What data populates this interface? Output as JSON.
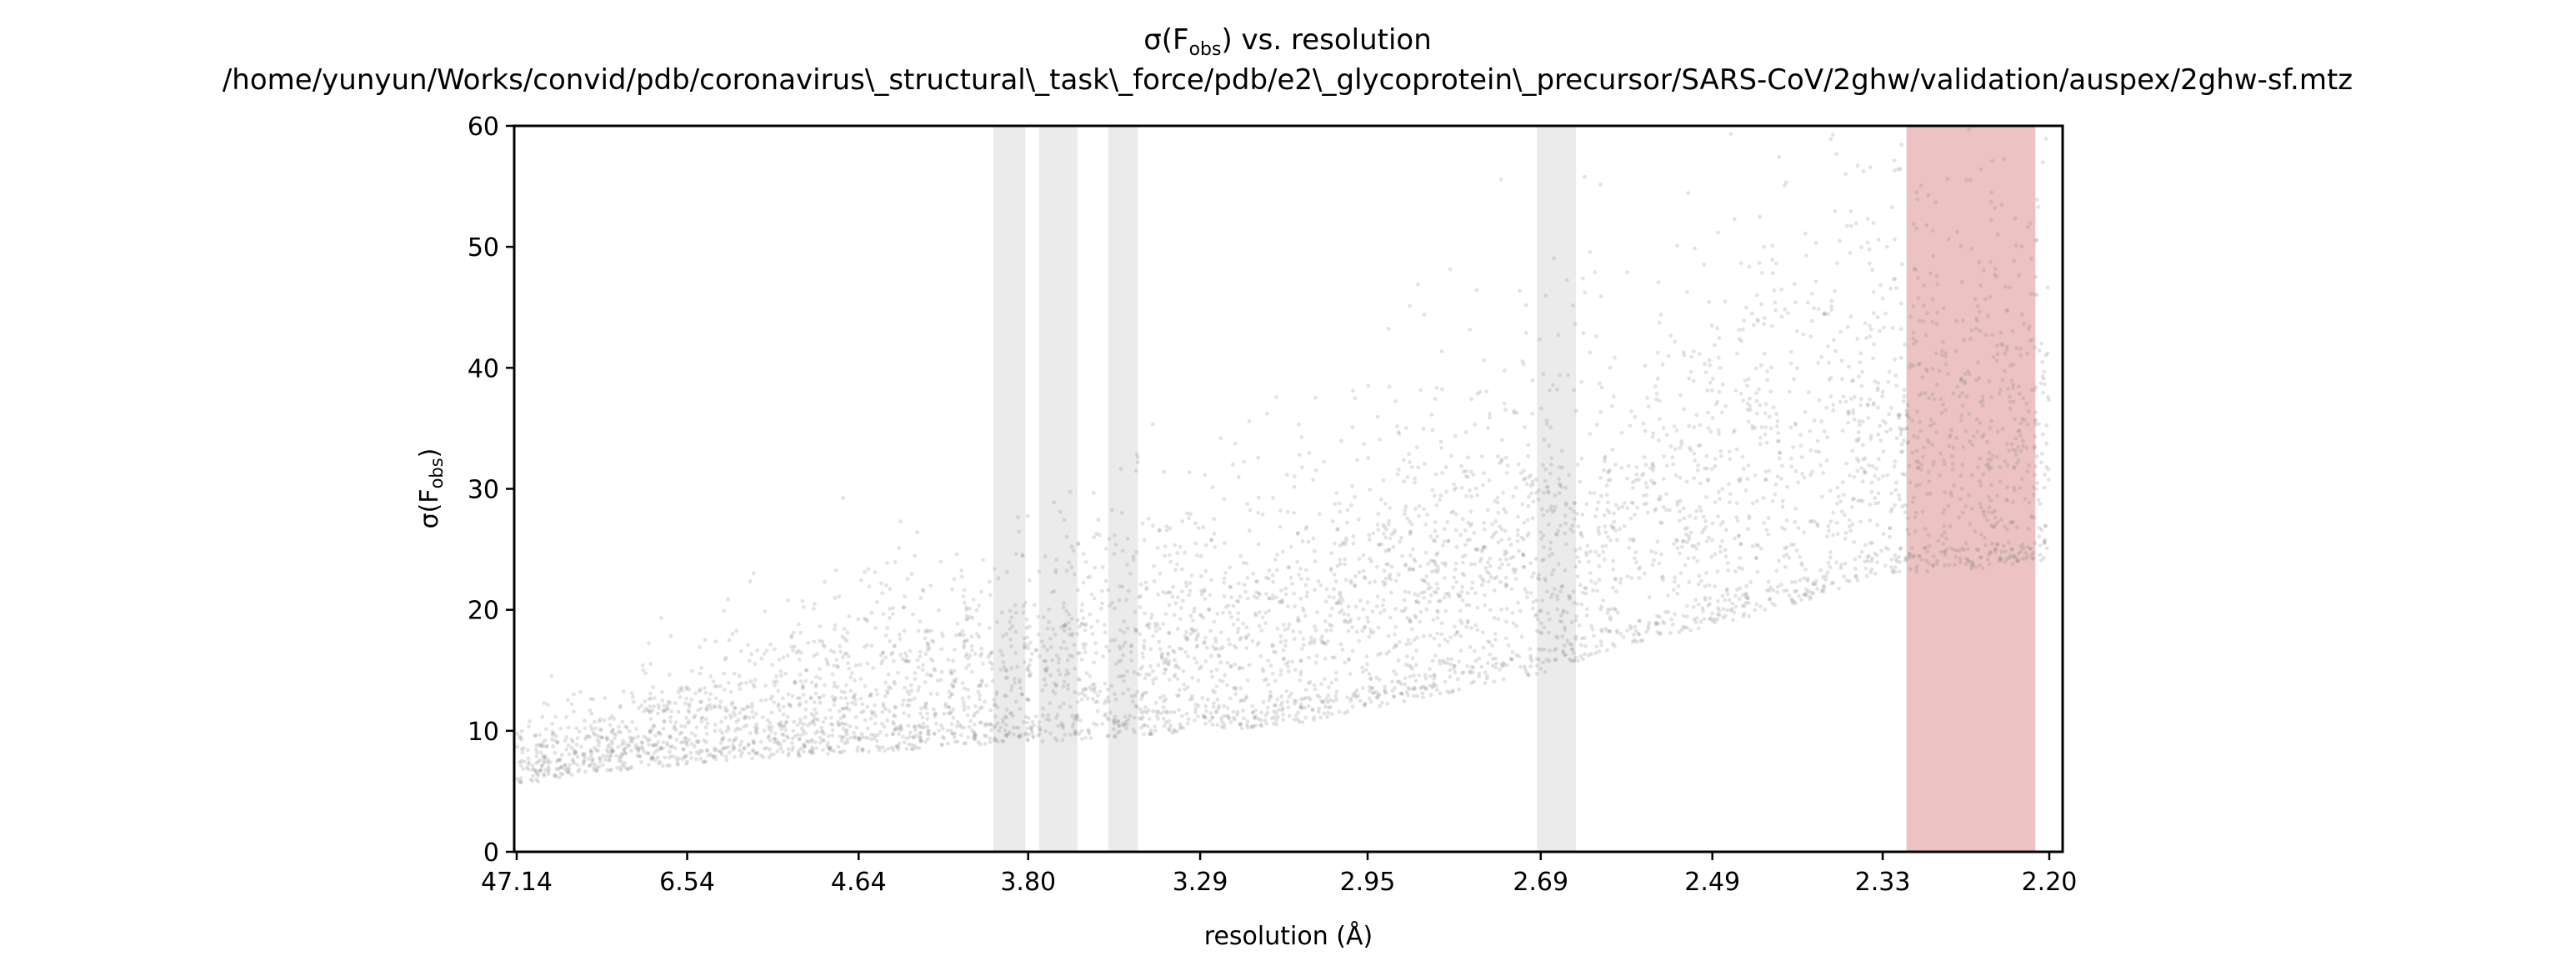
{
  "chart_data": {
    "type": "scatter",
    "title": "σ(F_obs) vs. resolution",
    "title_sub": "obs",
    "subtitle": "/home/yunyun/Works/convid/pdb/coronavirus\\_structural\\_task\\_force/pdb/e2\\_glycoprotein\\_precursor/SARS-CoV/2ghw/validation/auspex/2ghw-sf.mtz",
    "xlabel": "resolution (Å)",
    "ylabel": "σ(F_obs)",
    "x_scale": "reciprocal-squared (1/d²)",
    "x_ticks": [
      "47.14",
      "6.54",
      "4.64",
      "3.80",
      "3.29",
      "2.95",
      "2.69",
      "2.49",
      "2.33",
      "2.20"
    ],
    "x_tick_resolution": [
      47.14,
      6.54,
      4.64,
      3.8,
      3.29,
      2.95,
      2.69,
      2.49,
      2.33,
      2.2
    ],
    "ylim": [
      0,
      60
    ],
    "y_ticks": [
      0,
      10,
      20,
      30,
      40,
      50,
      60
    ],
    "grid": false,
    "legend": "none",
    "points_color": "#7f7f7f",
    "ice_ring_color": "#d3d3d3",
    "highlight_color": "#d98585",
    "series": [
      {
        "type": "density-trend",
        "x": [
          47.14,
          8.0,
          6.54,
          5.5,
          4.64,
          4.2,
          3.8,
          3.5,
          3.29,
          3.1,
          2.95,
          2.8,
          2.69,
          2.58,
          2.49,
          2.4,
          2.33,
          2.26,
          2.2
        ],
        "y_center": [
          7,
          9,
          10,
          11,
          12,
          13,
          14,
          15,
          16,
          17,
          19,
          21,
          23,
          26,
          28,
          30,
          33,
          33,
          34
        ],
        "y_spread": [
          3,
          4,
          5,
          6,
          7,
          8,
          9,
          10,
          11,
          12,
          13,
          14,
          15,
          16,
          17,
          17,
          18,
          18,
          18
        ]
      }
    ],
    "shaded_bands": [
      {
        "kind": "ice-ring",
        "res_from": 3.935,
        "res_to": 3.81
      },
      {
        "kind": "ice-ring",
        "res_from": 3.76,
        "res_to": 3.63
      },
      {
        "kind": "ice-ring",
        "res_from": 3.535,
        "res_to": 3.45
      },
      {
        "kind": "ice-ring",
        "res_from": 2.695,
        "res_to": 2.645
      },
      {
        "kind": "highlight",
        "res_from": 2.31,
        "res_to": 2.21
      }
    ]
  }
}
